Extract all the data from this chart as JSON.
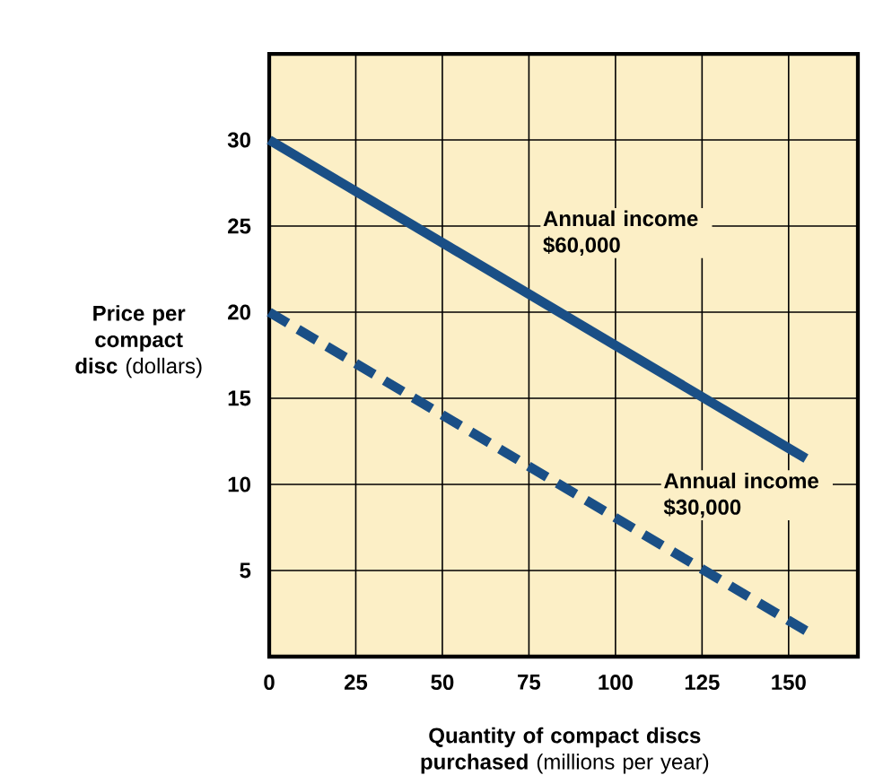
{
  "chart_data": {
    "type": "line",
    "xlabel": "**Quantity of compact discs purchased** (millions per year)",
    "ylabel": "**Price per compact disc** (dollars)",
    "series": [
      {
        "values": [
          30,
          11.5
        ],
        "color": "#1a4f86",
        "line_style": "solid"
      },
      {
        "values": [
          20,
          1.5
        ],
        "color": "#1a4f86",
        "line_style": "dashed"
      }
    ],
    "x": [
      0,
      155
    ],
    "annotations": [
      "**Annual income $60,000**",
      "**Annual income $30,000**"
    ],
    "xlim": [
      0,
      170
    ],
    "ylim": [
      0,
      35
    ],
    "xticks": [
      0,
      25,
      50,
      75,
      100,
      125,
      150
    ],
    "yticks": [
      5,
      10,
      15,
      20,
      25,
      30
    ],
    "grid": true,
    "marker": "none"
  }
}
